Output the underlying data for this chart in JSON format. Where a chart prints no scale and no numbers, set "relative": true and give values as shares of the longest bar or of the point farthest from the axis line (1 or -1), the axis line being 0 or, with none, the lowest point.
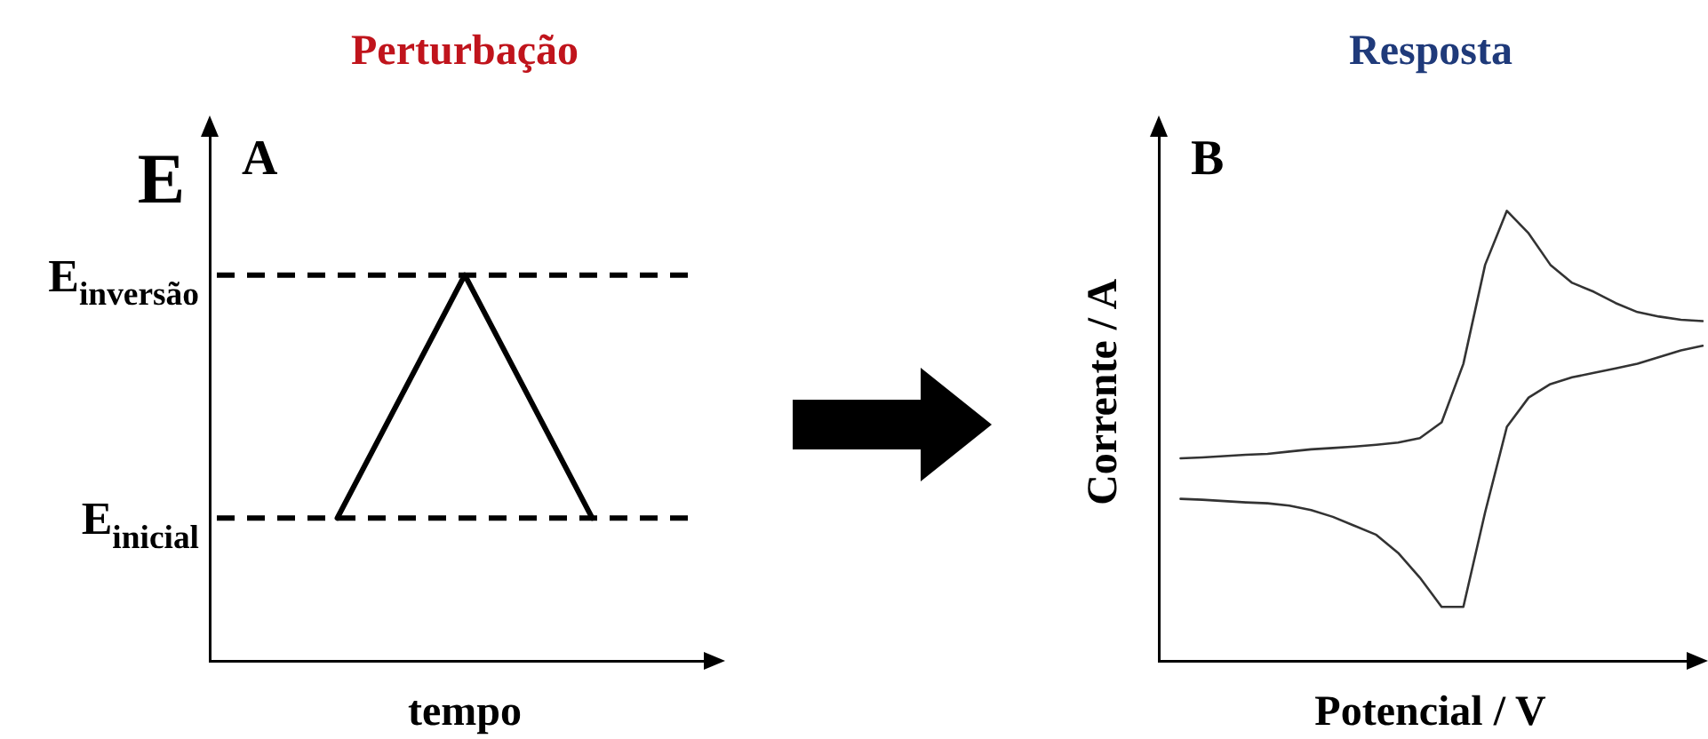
{
  "chart_data": [
    {
      "type": "line",
      "title": "Perturbação",
      "xlabel": "tempo",
      "ylabel": "E",
      "relative": true,
      "categories": [
        null,
        null,
        null,
        null,
        null
      ],
      "series": [
        {
          "color": "#000000",
          "values": [
            null,
            0.37,
            1,
            0.37,
            null
          ]
        }
      ],
      "ref_lines": [
        {
          "axis": "y",
          "value": 1,
          "label": "E$_{inversão}$",
          "color": "#000000",
          "line_style": "dashed"
        },
        {
          "axis": "y",
          "value": 0.37,
          "label": "E$_{inicial}$",
          "color": "#000000",
          "line_style": "dashed"
        }
      ],
      "annotations": [
        "A"
      ],
      "grid": false,
      "legend": false,
      "tick_labels": false,
      "marker": "none"
    },
    {
      "type": "line",
      "title": "Resposta",
      "xlabel": "Potencial / V",
      "ylabel": "Corrente / A",
      "relative": true,
      "categories": [
        null,
        null,
        null,
        null,
        null,
        null,
        null,
        null,
        null,
        null,
        null,
        null,
        null,
        null,
        null,
        null,
        null,
        null,
        null,
        null,
        null,
        null,
        null,
        null,
        null,
        null
      ],
      "series": [
        {
          "color": "#333333",
          "values": [
            null,
            0.45,
            0.452,
            0.455,
            0.458,
            0.46,
            0.465,
            0.47,
            0.473,
            0.476,
            0.48,
            0.485,
            0.495,
            0.53,
            0.66,
            0.88,
            1.0,
            0.95,
            0.88,
            0.84,
            0.82,
            0.795,
            0.775,
            0.765,
            0.758,
            0.755
          ]
        },
        {
          "color": "#333333",
          "values": [
            null,
            0.36,
            0.358,
            0.355,
            0.352,
            0.35,
            0.345,
            0.335,
            0.32,
            0.3,
            0.28,
            0.24,
            0.185,
            0.12,
            0.12,
            0.33,
            0.52,
            0.585,
            0.615,
            0.63,
            0.64,
            0.65,
            0.66,
            0.675,
            0.69,
            0.7
          ]
        }
      ],
      "annotations": [
        "B"
      ],
      "grid": false,
      "legend": false,
      "tick_labels": false,
      "marker": "none"
    }
  ]
}
